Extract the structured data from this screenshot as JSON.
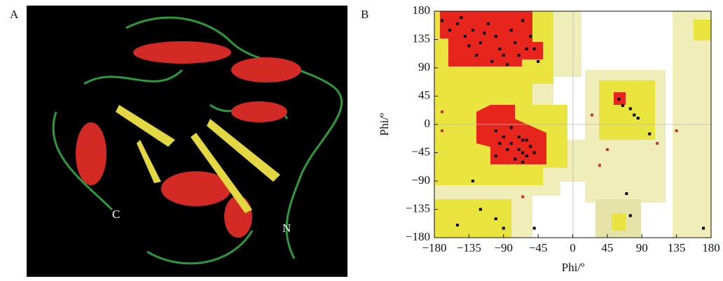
{
  "panel_a": {
    "label": "A",
    "c_label": "C",
    "n_label": "N"
  },
  "chart_data": {
    "type": "scatter",
    "label": "B",
    "x_label": "Phi/º",
    "y_label": "Phi/º",
    "xlim": [
      -180,
      180
    ],
    "ylim": [
      -180,
      180
    ],
    "xticks": [
      {
        "value": -180,
        "label": "−180"
      },
      {
        "value": -135,
        "label": "−135"
      },
      {
        "value": -90,
        "label": "−90"
      },
      {
        "value": -45,
        "label": "−45"
      },
      0,
      45,
      90,
      135,
      180
    ],
    "yticks": [
      {
        "value": -180,
        "label": "−180"
      },
      {
        "value": -135,
        "label": "−135"
      },
      {
        "value": -90,
        "label": "−90"
      },
      {
        "value": -45,
        "label": "−45"
      },
      0,
      45,
      90,
      135,
      180
    ],
    "series": [
      {
        "color": "#000000",
        "x": [
          -160,
          -150,
          -140,
          -130,
          -120,
          -110,
          -100,
          -95,
          -90,
          -80,
          -75,
          -70,
          -60,
          -55,
          -50,
          -45,
          -125,
          -135,
          -105,
          -85,
          -170,
          -145,
          -65,
          -115,
          -100,
          -90,
          -80,
          -70,
          -65,
          -60,
          -55,
          -75,
          -85,
          -95,
          -60,
          -50,
          -70,
          -80,
          -65,
          60,
          65,
          75,
          80,
          85,
          100,
          70,
          -100,
          -120,
          -150,
          -90,
          -50,
          -100,
          -130,
          -65,
          170,
          75
        ],
        "values": [
          150,
          160,
          140,
          150,
          130,
          160,
          140,
          120,
          110,
          150,
          130,
          110,
          120,
          140,
          120,
          100,
          110,
          125,
          100,
          95,
          165,
          170,
          165,
          145,
          -10,
          -20,
          -30,
          -40,
          -45,
          -50,
          -35,
          -55,
          -40,
          -30,
          -25,
          -45,
          -20,
          -5,
          -60,
          40,
          30,
          25,
          15,
          10,
          -15,
          -110,
          -150,
          -135,
          -160,
          -165,
          -165,
          -50,
          -90,
          -25,
          -165,
          -145
        ]
      },
      {
        "color": "#c0392b",
        "x": [
          -170,
          -170,
          -65,
          25,
          45,
          35,
          110,
          135
        ],
        "values": [
          20,
          -10,
          -115,
          15,
          -40,
          -65,
          -30,
          -10
        ]
      }
    ]
  }
}
